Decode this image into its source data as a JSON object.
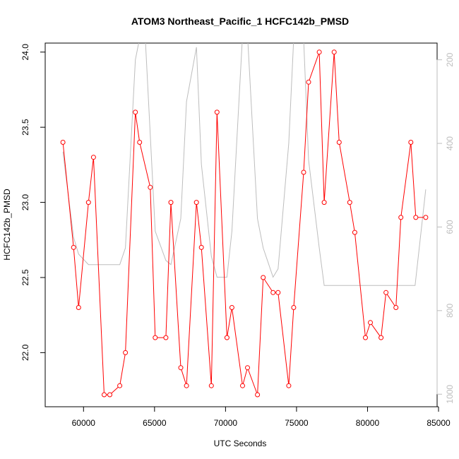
{
  "chart_data": {
    "type": "line",
    "title": "ATOM3 Northeast_Pacific_1 HCFC142b_PMSD",
    "xlabel": "UTC Seconds",
    "ylabel": "HCFC142b_PMSD",
    "xlim": [
      57300,
      84900
    ],
    "ylim": [
      21.64,
      24.06
    ],
    "x_ticks": [
      60000,
      65000,
      70000,
      75000,
      80000,
      85000
    ],
    "y_ticks": [
      22.0,
      22.5,
      23.0,
      23.5,
      24.0
    ],
    "y_tick_labels": [
      "22.0",
      "22.5",
      "23.0",
      "23.5",
      "24.0"
    ],
    "secondary_axis": {
      "side": "right",
      "lim": [
        1030,
        160
      ],
      "ticks": [
        200,
        400,
        600,
        800,
        1000
      ],
      "color": "#bdbdbd"
    },
    "series": [
      {
        "color": "#ff0000",
        "marker": "open-circle",
        "axis": "left",
        "x": [
          58550,
          59300,
          59650,
          60350,
          60700,
          61450,
          61850,
          62550,
          62950,
          63650,
          63950,
          64700,
          65050,
          65800,
          66150,
          66850,
          67250,
          67950,
          68300,
          69000,
          69400,
          70100,
          70450,
          71200,
          71550,
          72250,
          72650,
          73350,
          73700,
          74450,
          74800,
          75500,
          75850,
          76600,
          76950,
          77650,
          78000,
          78750,
          79100,
          79850,
          80200,
          80950,
          81300,
          82000,
          82350,
          83050,
          83400,
          84100
        ],
        "values": [
          23.4,
          22.7,
          22.3,
          23.0,
          23.3,
          21.72,
          21.72,
          21.78,
          22.0,
          23.6,
          23.4,
          23.1,
          22.1,
          22.1,
          23.0,
          21.9,
          21.78,
          23.0,
          22.7,
          21.78,
          23.6,
          22.1,
          22.3,
          21.78,
          21.9,
          21.72,
          22.5,
          22.4,
          22.4,
          21.78,
          22.3,
          23.2,
          23.8,
          24.0,
          23.0,
          24.0,
          23.4,
          23.0,
          22.8,
          22.1,
          22.2,
          22.1,
          22.4,
          22.3,
          22.9,
          23.4,
          22.9,
          22.9
        ]
      },
      {
        "color": "#bdbdbd",
        "marker": "none",
        "axis": "right",
        "x": [
          58550,
          59300,
          59650,
          60350,
          61100,
          62550,
          62950,
          63650,
          64000,
          64350,
          65050,
          65800,
          66150,
          66850,
          67250,
          67950,
          68300,
          69000,
          69400,
          70100,
          70450,
          71200,
          71550,
          72250,
          72650,
          73350,
          73700,
          74450,
          74800,
          75500,
          75850,
          76600,
          76950,
          77650,
          80200,
          83350,
          84100
        ],
        "values": [
          420,
          625,
          665,
          690,
          690,
          690,
          650,
          200,
          140,
          150,
          610,
          680,
          690,
          580,
          300,
          170,
          450,
          670,
          720,
          720,
          610,
          140,
          140,
          580,
          650,
          720,
          700,
          400,
          150,
          150,
          440,
          650,
          740,
          740,
          740,
          740,
          510
        ]
      }
    ]
  }
}
